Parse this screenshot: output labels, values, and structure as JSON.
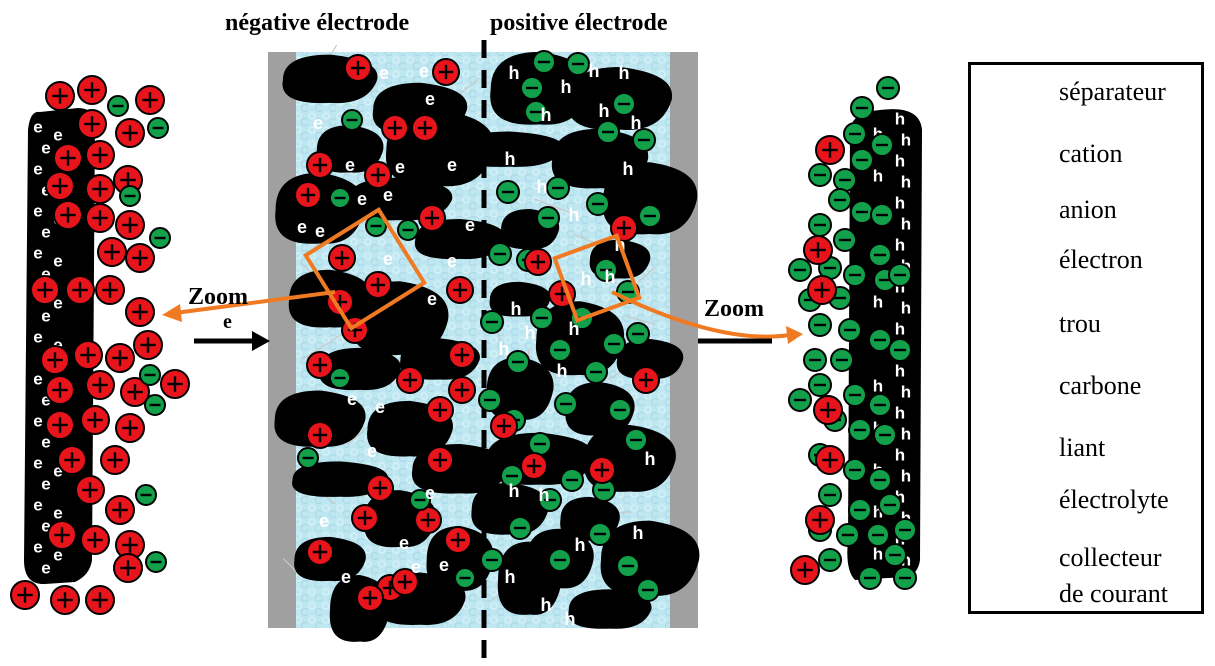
{
  "titles": {
    "negative": "négative électrode",
    "positive": "positive électrode"
  },
  "zoom": {
    "left_label": "Zoom",
    "right_label": "Zoom",
    "electron_flow": "e"
  },
  "symbols": {
    "cation_sign": "+",
    "anion_sign": "−",
    "electron": "e",
    "hole": "h"
  },
  "legend": {
    "items": [
      {
        "id": "separator",
        "label": "séparateur",
        "icon": "dashed-line-icon"
      },
      {
        "id": "cation",
        "label": "cation",
        "icon": "cation-icon"
      },
      {
        "id": "anion",
        "label": "anion",
        "icon": "anion-icon"
      },
      {
        "id": "electron",
        "label": "électron",
        "icon": "electron-carbon-icon"
      },
      {
        "id": "hole",
        "label": "trou",
        "icon": "hole-carbon-icon"
      },
      {
        "id": "carbon",
        "label": "carbone",
        "icon": "carbon-icon"
      },
      {
        "id": "binder",
        "label": "liant",
        "icon": "binder-lines-icon"
      },
      {
        "id": "electrolyte",
        "label": "électrolyte",
        "icon": "electrolyte-icon"
      },
      {
        "id": "collector",
        "label": "collecteur",
        "label2": "de courant",
        "icon": "collector-icon"
      }
    ]
  },
  "colors": {
    "cation": "#e8141b",
    "anion": "#12a04a",
    "carbon": "#000000",
    "electrolyte": "#b9e6f0",
    "collector": "#a0a0a0",
    "zoom_arrow": "#f07a22"
  }
}
